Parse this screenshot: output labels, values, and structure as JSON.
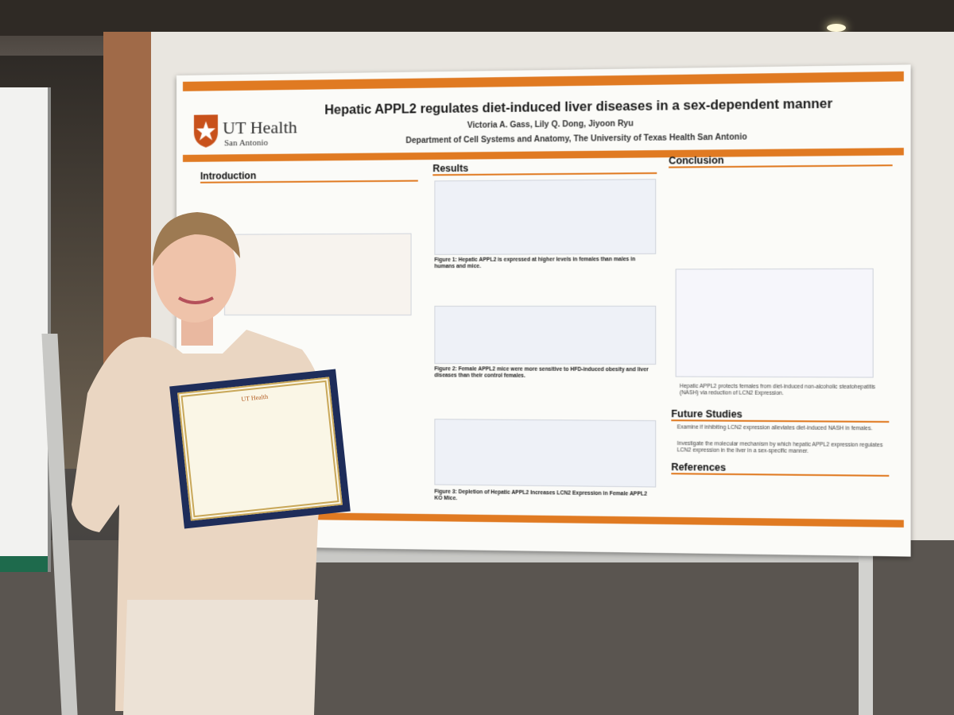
{
  "poster": {
    "logo": {
      "name": "UT Health",
      "place": "San Antonio"
    },
    "title": "Hepatic APPL2 regulates diet-induced liver diseases in a sex-dependent manner",
    "authors": "Victoria A. Gass, Lily Q. Dong, Jiyoon Ryu",
    "department": "Department of Cell Systems and Anatomy, The University of Texas Health San Antonio",
    "sections": {
      "introduction": "Introduction",
      "results": "Results",
      "conclusion": "Conclusion",
      "future_studies": "Future Studies",
      "references": "References"
    },
    "figures": [
      "Figure 1: Hepatic APPL2 is expressed at higher levels in females than males in humans and mice.",
      "Figure 2: Female APPL2 mice were more sensitive to HFD-induced obesity and liver diseases than their control females.",
      "Figure 3: Depletion of Hepatic APPL2 Increases LCN2 Expression in Female APPL2 KO Mice."
    ],
    "conclusion_caption": "Hepatic APPL2 protects females from diet-induced non-alcoholic steatohepatitis (NASH) via reduction of LCN2 Expression.",
    "future_studies": [
      "Examine if inhibiting LCN2 expression alleviates diet-induced NASH in females.",
      "Investigate the molecular mechanism by which hepatic APPL2 expression regulates LCN2 expression in the liver in a sex-specific manner."
    ]
  },
  "certificate": {
    "logo": "UT Health"
  }
}
